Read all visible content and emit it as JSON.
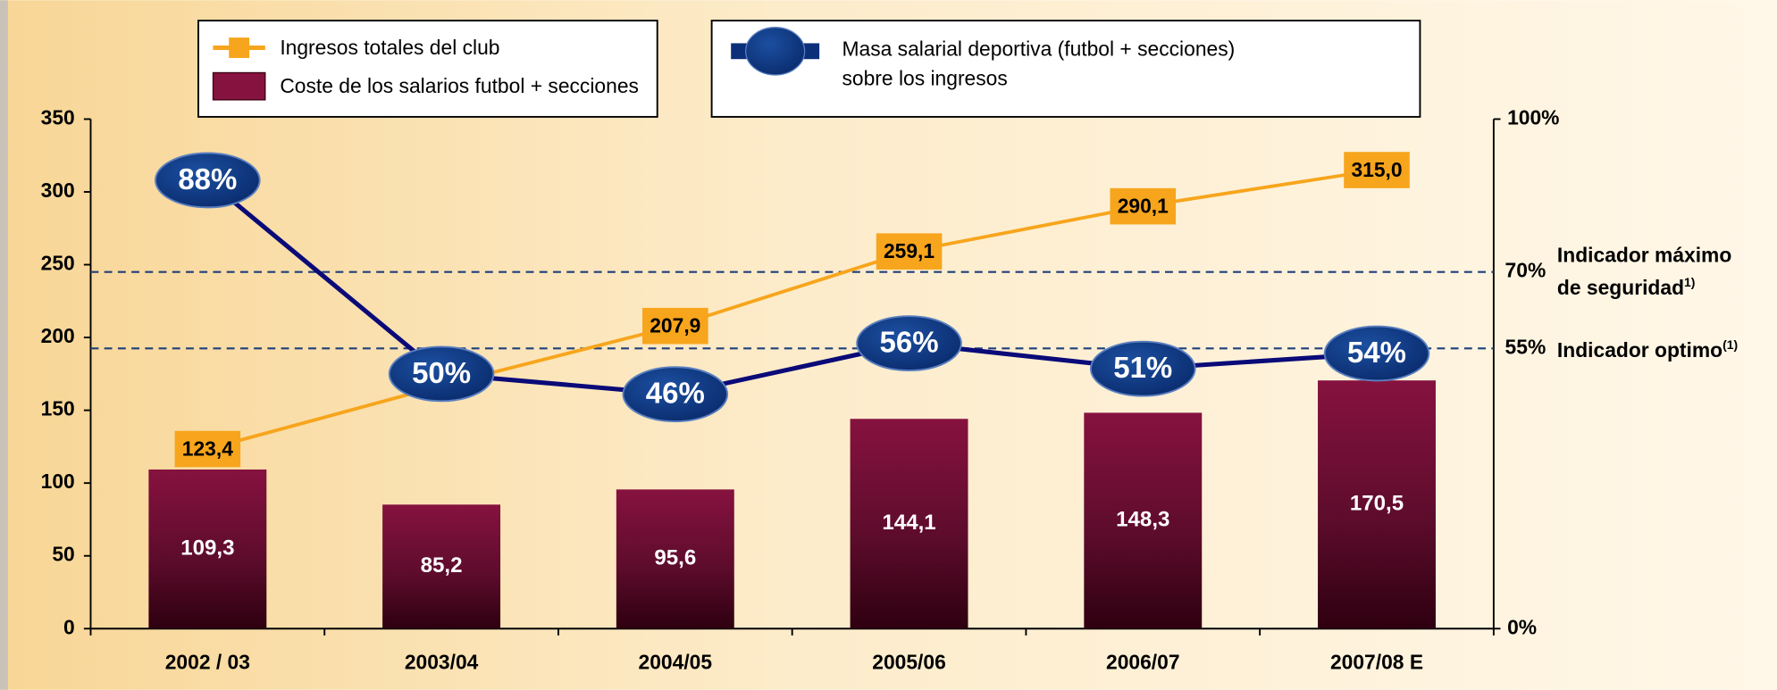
{
  "chart_data": {
    "type": "combo",
    "categories": [
      "2002 / 03",
      "2003/04",
      "2004/05",
      "2005/06",
      "2006/07",
      "2007/08 E"
    ],
    "ylim": [
      0,
      350
    ],
    "yticks": [
      0,
      50,
      100,
      150,
      200,
      250,
      300,
      350
    ],
    "y2lim": [
      0,
      100
    ],
    "y2ticks": [
      {
        "value": 0,
        "label": "0%"
      },
      {
        "value": 100,
        "label": "100%"
      }
    ],
    "series": [
      {
        "name": "Ingresos totales del club",
        "type": "line",
        "color": "#f7a51c",
        "values": [
          123.4,
          167,
          207.9,
          259.1,
          290.1,
          315.0
        ],
        "value_labels": [
          "123,4",
          null,
          "207,9",
          "259,1",
          "290,1",
          "315,0"
        ]
      },
      {
        "name": "Coste de los salarios futbol + secciones",
        "type": "bar",
        "color": "#7f1038",
        "values": [
          109.3,
          85.2,
          95.6,
          144.1,
          148.3,
          170.5
        ],
        "value_labels": [
          "109,3",
          "85,2",
          "95,6",
          "144,1",
          "148,3",
          "170,5"
        ]
      },
      {
        "name": "Masa salarial deportiva (futbol  + secciones)\nsobre los ingresos",
        "type": "line",
        "axis": "y2",
        "color": "#0c2f7a",
        "values": [
          88,
          50,
          46,
          56,
          51,
          54
        ],
        "value_labels": [
          "88%",
          "50%",
          "46%",
          "56%",
          "51%",
          "54%"
        ]
      }
    ],
    "reference_lines": [
      {
        "value": 70,
        "label": "70%",
        "text": "Indicador máximo\nde seguridad",
        "sup": "1)"
      },
      {
        "value": 55,
        "label": "55%",
        "text": "Indicador optimo",
        "sup": "(1)"
      }
    ]
  }
}
